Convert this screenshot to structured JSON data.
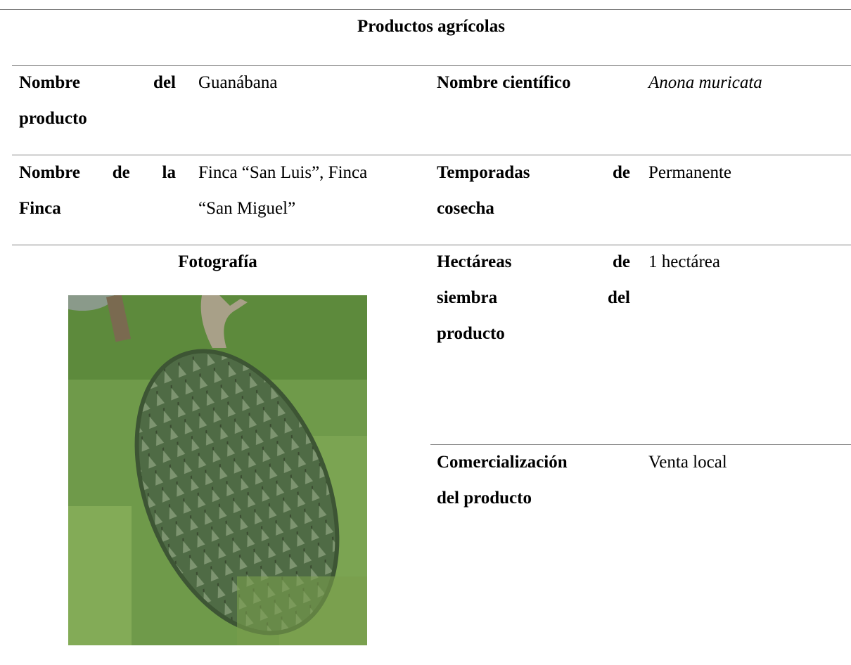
{
  "table": {
    "title": "Productos agrícolas",
    "photo_label": "Fotografía",
    "rows": [
      {
        "label": [
          "Nombre del",
          "producto"
        ],
        "value": [
          "Guanábana"
        ]
      },
      {
        "label": [
          "Nombre científico"
        ],
        "value": [
          "Anona muricata"
        ]
      },
      {
        "label": [
          "Nombre de la",
          "Finca"
        ],
        "value": [
          "Finca “San Luis”, Finca",
          "“San Miguel”"
        ]
      },
      {
        "label": [
          "Temporadas de",
          "cosecha"
        ],
        "value": [
          "Permanente"
        ]
      },
      {
        "label": [
          "Hectáreas de",
          "siembra del",
          "producto"
        ],
        "value": [
          "1 hectárea"
        ]
      },
      {
        "label": [
          "Comercialización",
          "del producto"
        ],
        "value": [
          "Venta local"
        ]
      }
    ]
  }
}
